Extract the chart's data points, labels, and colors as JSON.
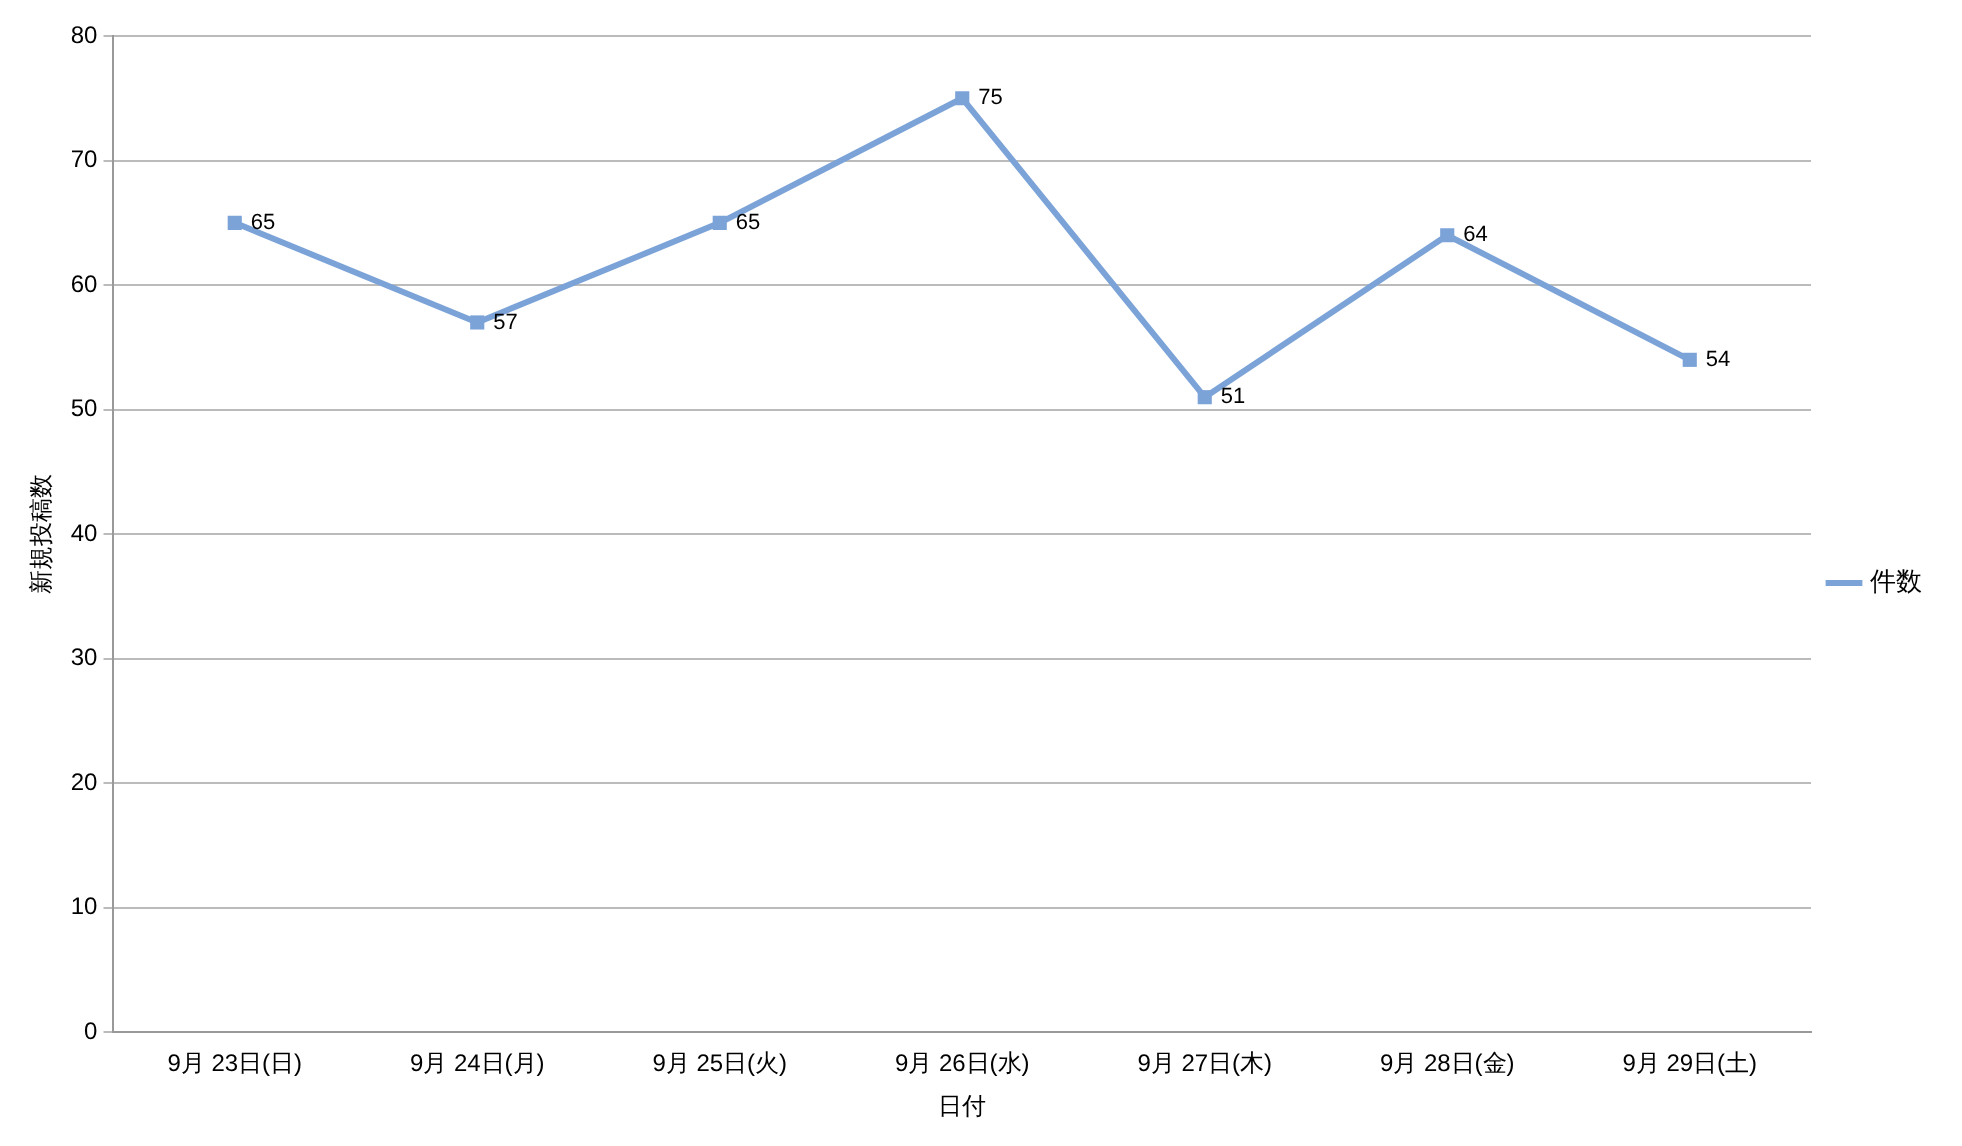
{
  "chart_data": {
    "type": "line",
    "xlabel": "日付",
    "ylabel": "新規投稿数",
    "categories": [
      "9月 23日(日)",
      "9月 24日(月)",
      "9月 25日(火)",
      "9月 26日(水)",
      "9月 27日(木)",
      "9月 28日(金)",
      "9月 29日(土)"
    ],
    "series": [
      {
        "name": "件数",
        "color": "#7ba3d8",
        "values": [
          65,
          57,
          65,
          75,
          51,
          64,
          54
        ]
      }
    ],
    "ylim": [
      0,
      80
    ],
    "yticks": [
      0,
      10,
      20,
      30,
      40,
      50,
      60,
      70,
      80
    ],
    "grid": "y",
    "legend": "right",
    "marker": "square",
    "line_style": "solid",
    "data_labels": true
  }
}
